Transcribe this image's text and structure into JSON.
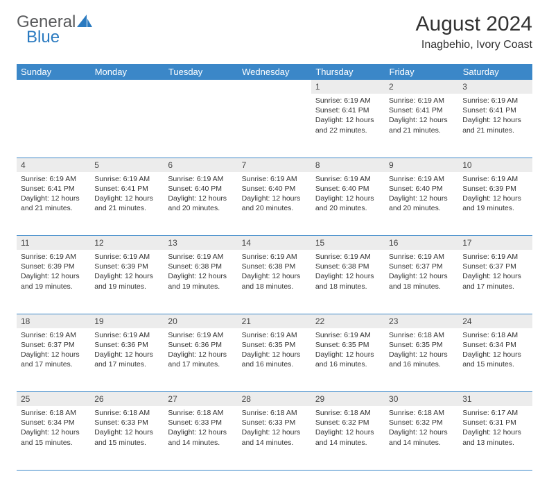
{
  "logo": {
    "text1": "General",
    "text2": "Blue",
    "color_gray": "#58595b",
    "color_blue": "#2a7ac0"
  },
  "title": "August 2024",
  "subtitle": "Inagbehio, Ivory Coast",
  "header_bg": "#3b87c8",
  "header_fg": "#ffffff",
  "daynum_bg": "#ececec",
  "border_color": "#3b87c8",
  "days": [
    "Sunday",
    "Monday",
    "Tuesday",
    "Wednesday",
    "Thursday",
    "Friday",
    "Saturday"
  ],
  "weeks": [
    [
      null,
      null,
      null,
      null,
      {
        "n": "1",
        "sr": "6:19 AM",
        "ss": "6:41 PM",
        "dl": "12 hours and 22 minutes."
      },
      {
        "n": "2",
        "sr": "6:19 AM",
        "ss": "6:41 PM",
        "dl": "12 hours and 21 minutes."
      },
      {
        "n": "3",
        "sr": "6:19 AM",
        "ss": "6:41 PM",
        "dl": "12 hours and 21 minutes."
      }
    ],
    [
      {
        "n": "4",
        "sr": "6:19 AM",
        "ss": "6:41 PM",
        "dl": "12 hours and 21 minutes."
      },
      {
        "n": "5",
        "sr": "6:19 AM",
        "ss": "6:41 PM",
        "dl": "12 hours and 21 minutes."
      },
      {
        "n": "6",
        "sr": "6:19 AM",
        "ss": "6:40 PM",
        "dl": "12 hours and 20 minutes."
      },
      {
        "n": "7",
        "sr": "6:19 AM",
        "ss": "6:40 PM",
        "dl": "12 hours and 20 minutes."
      },
      {
        "n": "8",
        "sr": "6:19 AM",
        "ss": "6:40 PM",
        "dl": "12 hours and 20 minutes."
      },
      {
        "n": "9",
        "sr": "6:19 AM",
        "ss": "6:40 PM",
        "dl": "12 hours and 20 minutes."
      },
      {
        "n": "10",
        "sr": "6:19 AM",
        "ss": "6:39 PM",
        "dl": "12 hours and 19 minutes."
      }
    ],
    [
      {
        "n": "11",
        "sr": "6:19 AM",
        "ss": "6:39 PM",
        "dl": "12 hours and 19 minutes."
      },
      {
        "n": "12",
        "sr": "6:19 AM",
        "ss": "6:39 PM",
        "dl": "12 hours and 19 minutes."
      },
      {
        "n": "13",
        "sr": "6:19 AM",
        "ss": "6:38 PM",
        "dl": "12 hours and 19 minutes."
      },
      {
        "n": "14",
        "sr": "6:19 AM",
        "ss": "6:38 PM",
        "dl": "12 hours and 18 minutes."
      },
      {
        "n": "15",
        "sr": "6:19 AM",
        "ss": "6:38 PM",
        "dl": "12 hours and 18 minutes."
      },
      {
        "n": "16",
        "sr": "6:19 AM",
        "ss": "6:37 PM",
        "dl": "12 hours and 18 minutes."
      },
      {
        "n": "17",
        "sr": "6:19 AM",
        "ss": "6:37 PM",
        "dl": "12 hours and 17 minutes."
      }
    ],
    [
      {
        "n": "18",
        "sr": "6:19 AM",
        "ss": "6:37 PM",
        "dl": "12 hours and 17 minutes."
      },
      {
        "n": "19",
        "sr": "6:19 AM",
        "ss": "6:36 PM",
        "dl": "12 hours and 17 minutes."
      },
      {
        "n": "20",
        "sr": "6:19 AM",
        "ss": "6:36 PM",
        "dl": "12 hours and 17 minutes."
      },
      {
        "n": "21",
        "sr": "6:19 AM",
        "ss": "6:35 PM",
        "dl": "12 hours and 16 minutes."
      },
      {
        "n": "22",
        "sr": "6:19 AM",
        "ss": "6:35 PM",
        "dl": "12 hours and 16 minutes."
      },
      {
        "n": "23",
        "sr": "6:18 AM",
        "ss": "6:35 PM",
        "dl": "12 hours and 16 minutes."
      },
      {
        "n": "24",
        "sr": "6:18 AM",
        "ss": "6:34 PM",
        "dl": "12 hours and 15 minutes."
      }
    ],
    [
      {
        "n": "25",
        "sr": "6:18 AM",
        "ss": "6:34 PM",
        "dl": "12 hours and 15 minutes."
      },
      {
        "n": "26",
        "sr": "6:18 AM",
        "ss": "6:33 PM",
        "dl": "12 hours and 15 minutes."
      },
      {
        "n": "27",
        "sr": "6:18 AM",
        "ss": "6:33 PM",
        "dl": "12 hours and 14 minutes."
      },
      {
        "n": "28",
        "sr": "6:18 AM",
        "ss": "6:33 PM",
        "dl": "12 hours and 14 minutes."
      },
      {
        "n": "29",
        "sr": "6:18 AM",
        "ss": "6:32 PM",
        "dl": "12 hours and 14 minutes."
      },
      {
        "n": "30",
        "sr": "6:18 AM",
        "ss": "6:32 PM",
        "dl": "12 hours and 14 minutes."
      },
      {
        "n": "31",
        "sr": "6:17 AM",
        "ss": "6:31 PM",
        "dl": "12 hours and 13 minutes."
      }
    ]
  ],
  "labels": {
    "sunrise": "Sunrise:",
    "sunset": "Sunset:",
    "daylight": "Daylight:"
  }
}
